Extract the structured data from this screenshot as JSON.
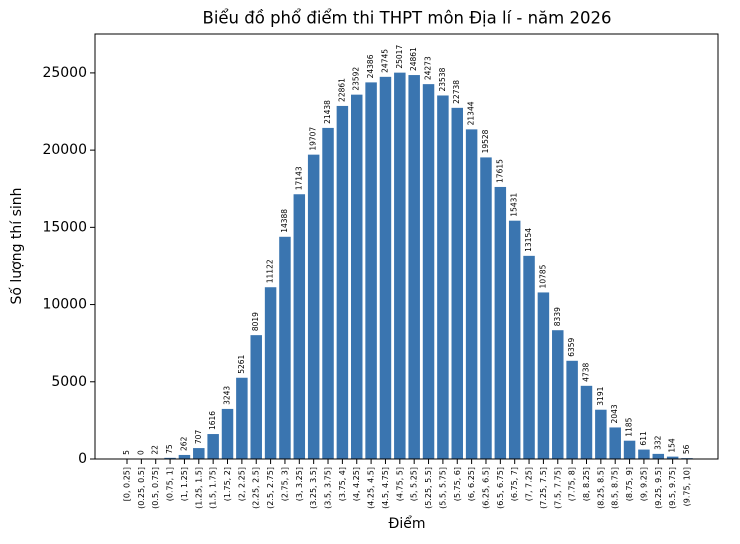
{
  "chart_data": {
    "type": "bar",
    "title": "Biểu đồ phổ điểm thi THPT môn Địa lí - năm 2026",
    "x_label": "Điểm",
    "y_label": "Số lượng thí sinh",
    "color": "#3a75b0",
    "categories": [
      "[0, 0.25]",
      "(0.25, 0.5]",
      "(0.5, 0.75]",
      "(0.75, 1]",
      "(1, 1.25]",
      "(1.25, 1.5]",
      "(1.5, 1.75]",
      "(1.75, 2]",
      "(2, 2.25]",
      "(2.25, 2.5]",
      "(2.5, 2.75]",
      "(2.75, 3]",
      "(3, 3.25]",
      "(3.25, 3.5]",
      "(3.5, 3.75]",
      "(3.75, 4]",
      "(4, 4.25]",
      "(4.25, 4.5]",
      "(4.5, 4.75]",
      "(4.75, 5]",
      "(5, 5.25]",
      "(5.25, 5.5]",
      "(5.5, 5.75]",
      "(5.75, 6]",
      "(6, 6.25]",
      "(6.25, 6.5]",
      "(6.5, 6.75]",
      "(6.75, 7]",
      "(7, 7.25]",
      "(7.25, 7.5]",
      "(7.5, 7.75]",
      "(7.75, 8]",
      "(8, 8.25]",
      "(8.25, 8.5]",
      "(8.5, 8.75]",
      "(8.75, 9]",
      "(9, 9.25]",
      "(9.25, 9.5]",
      "(9.5, 9.75]",
      "(9.75, 10]"
    ],
    "values": [
      5,
      0,
      22,
      75,
      262,
      707,
      1616,
      3243,
      5261,
      8019,
      11122,
      14388,
      17143,
      19707,
      21438,
      22861,
      23592,
      24386,
      24745,
      25017,
      24861,
      24273,
      23538,
      22738,
      21344,
      19528,
      17615,
      15431,
      13154,
      10785,
      8339,
      6359,
      4738,
      3191,
      2043,
      1185,
      611,
      332,
      154,
      56
    ],
    "ylim": [
      0,
      27519
    ],
    "yticks": [
      0,
      5000,
      10000,
      15000,
      20000,
      25000
    ]
  }
}
